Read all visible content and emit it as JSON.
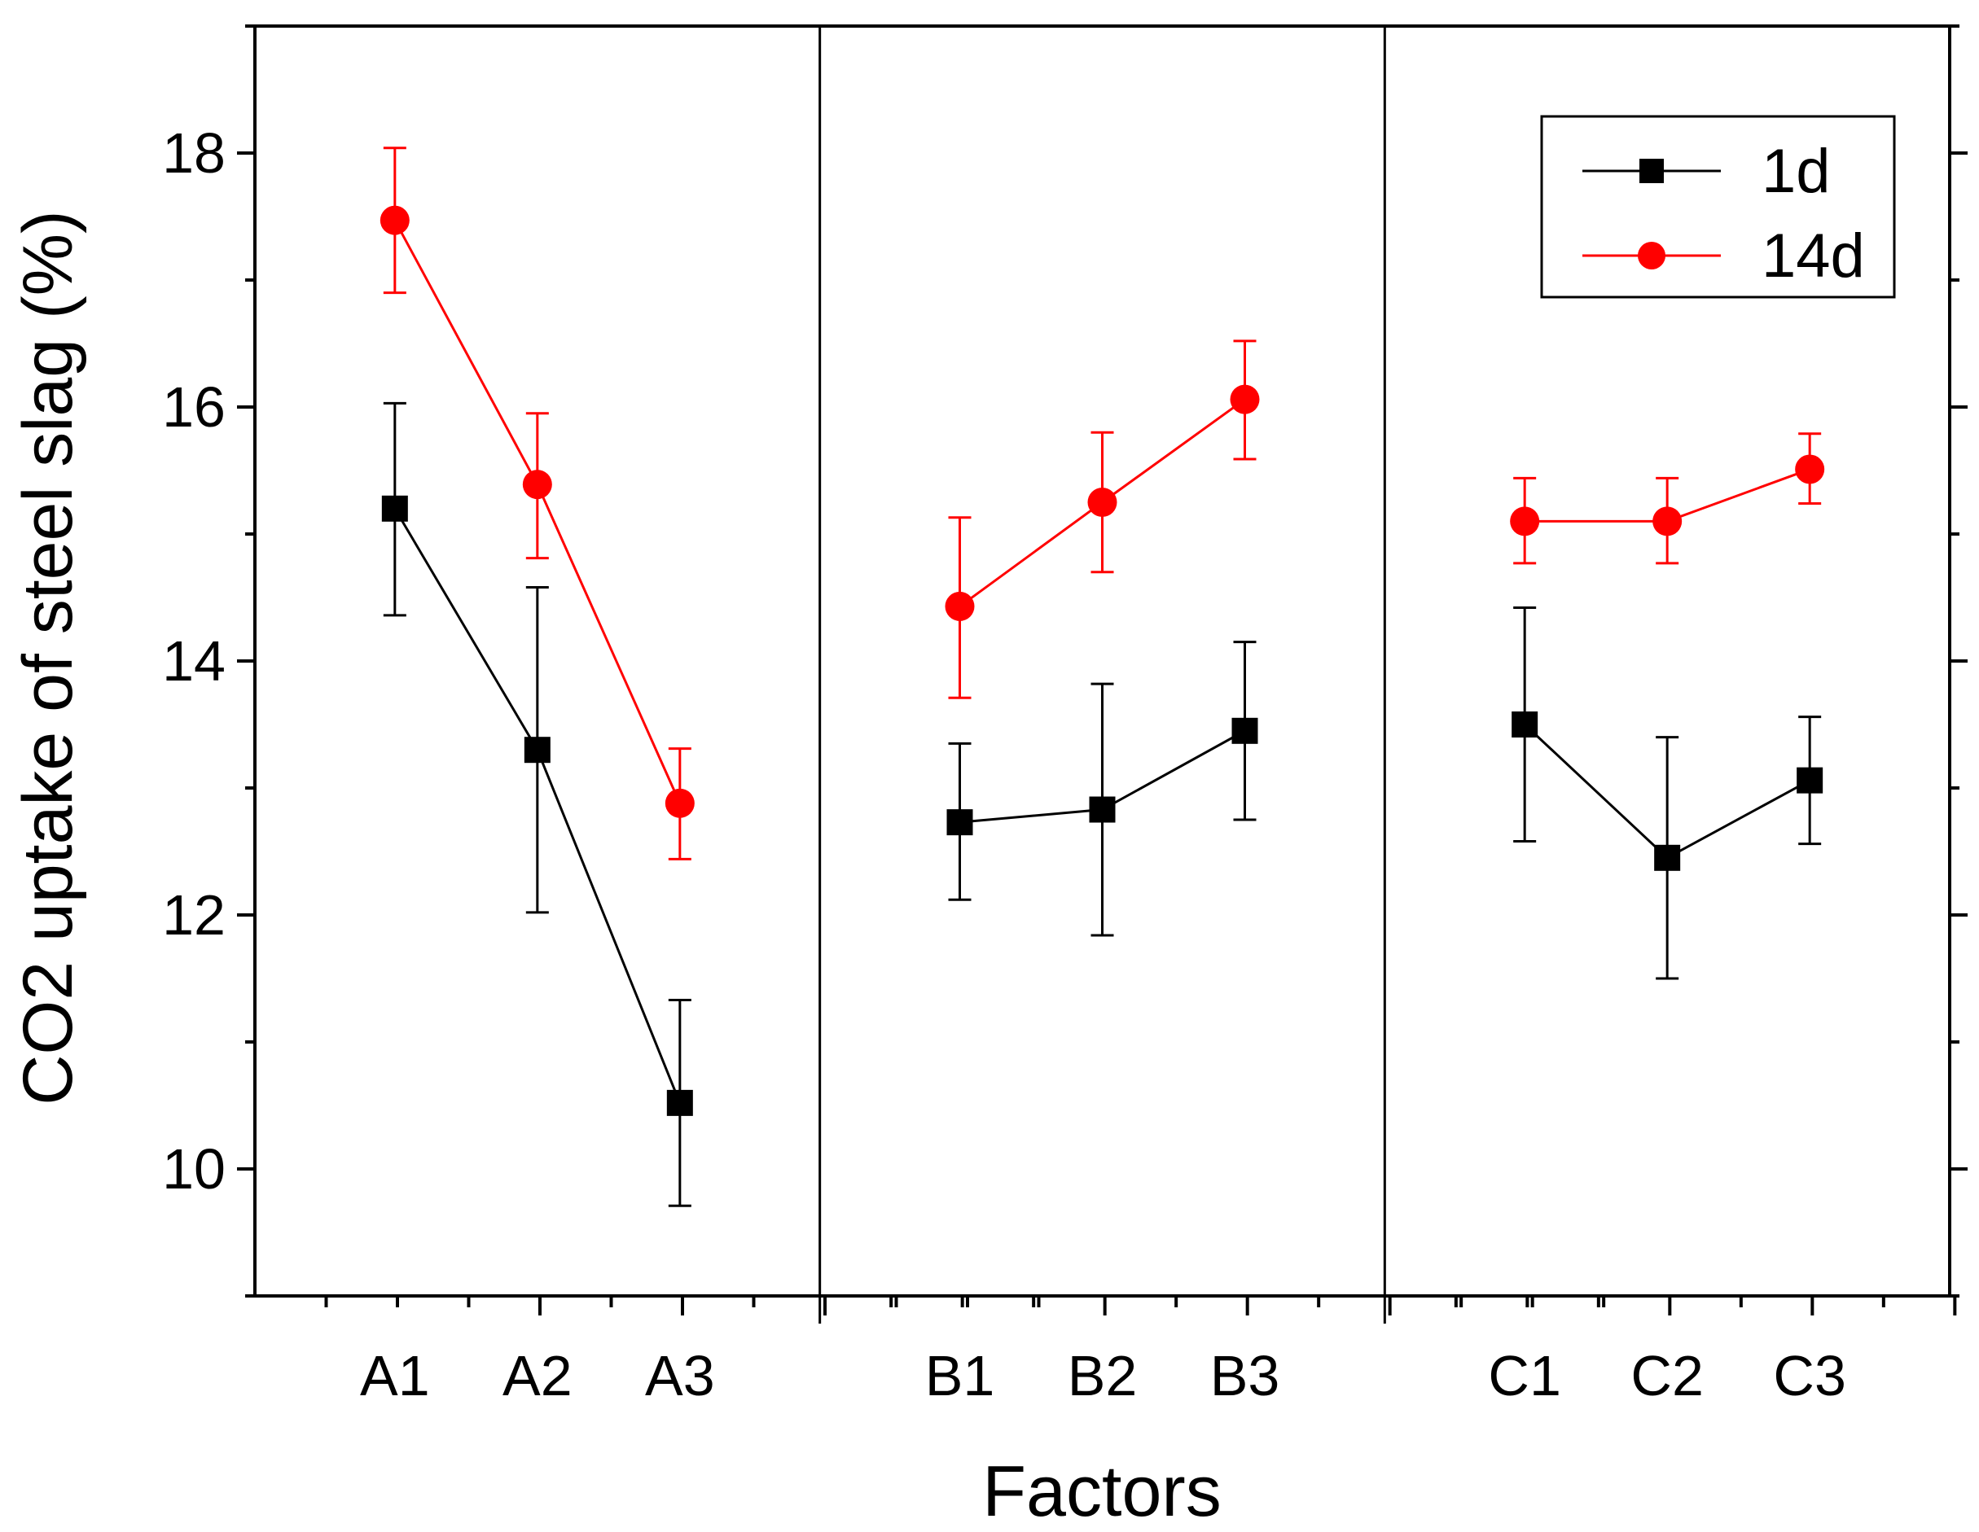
{
  "chart_data": {
    "type": "line",
    "title": "",
    "xlabel": "Factors",
    "ylabel": "CO2 uptake of steel slag (%)",
    "ylim": [
      9,
      19
    ],
    "yticks": [
      10,
      12,
      14,
      16,
      18
    ],
    "groups": [
      {
        "name": "A",
        "categories": [
          "A1",
          "A2",
          "A3"
        ]
      },
      {
        "name": "B",
        "categories": [
          "B1",
          "B2",
          "B3"
        ]
      },
      {
        "name": "C",
        "categories": [
          "C1",
          "C2",
          "C3"
        ]
      }
    ],
    "series": [
      {
        "name": "1d",
        "color": "#000000",
        "marker": "square",
        "values": [
          15.2,
          13.3,
          10.52,
          12.73,
          12.83,
          13.45,
          13.5,
          12.45,
          13.06
        ],
        "err_upper": [
          16.03,
          14.58,
          11.33,
          13.35,
          13.82,
          14.15,
          14.42,
          13.4,
          13.56
        ],
        "err_lower": [
          14.36,
          12.02,
          9.71,
          12.12,
          11.84,
          12.75,
          12.58,
          11.5,
          12.56
        ]
      },
      {
        "name": "14d",
        "color": "#ff0000",
        "marker": "circle",
        "values": [
          17.47,
          15.39,
          12.88,
          14.43,
          15.25,
          16.06,
          15.1,
          15.1,
          15.51
        ],
        "err_upper": [
          18.04,
          15.95,
          13.31,
          15.13,
          15.8,
          16.52,
          15.44,
          15.44,
          15.79
        ],
        "err_lower": [
          16.9,
          14.81,
          12.44,
          13.71,
          14.7,
          15.59,
          14.77,
          14.77,
          15.24
        ]
      }
    ],
    "legend": {
      "position": "top-right",
      "entries": [
        "1d",
        "14d"
      ]
    }
  }
}
